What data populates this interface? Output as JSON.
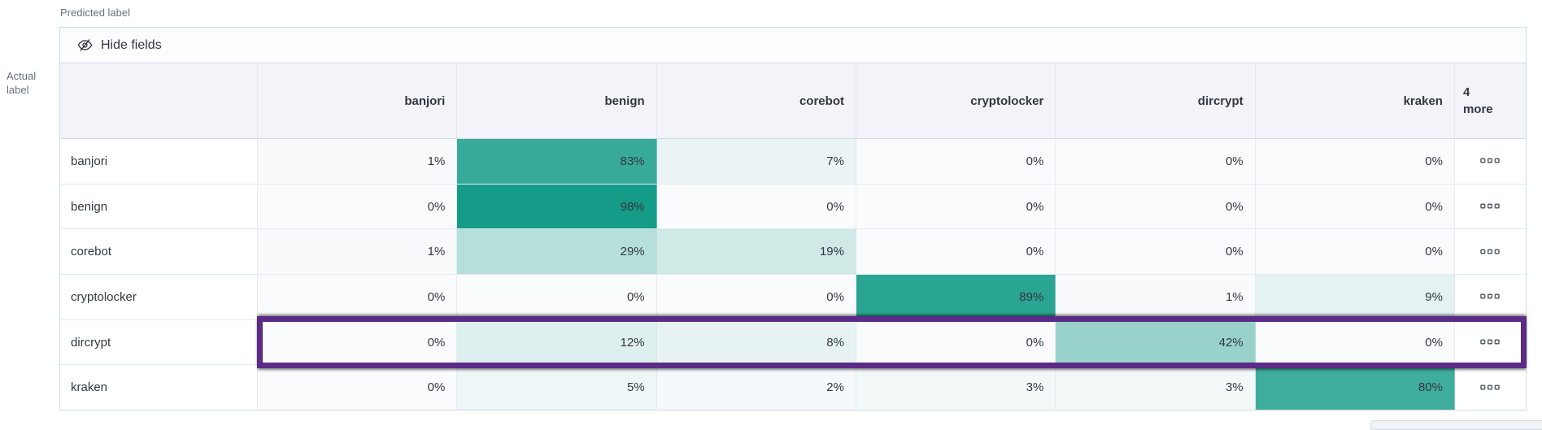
{
  "axis": {
    "predicted_label": "Predicted label",
    "actual_label_line1": "Actual",
    "actual_label_line2": "label"
  },
  "toolbar": {
    "hide_fields_label": "Hide fields",
    "icon": "eye-slash-icon"
  },
  "grid": {
    "more_column": {
      "count": "4",
      "label": "more"
    },
    "more_cell_icon": "boxes-horizontal-icon"
  },
  "colors": {
    "highlight": "#5B2B87",
    "cell_min": "#FAFBFD",
    "cell_max": "#109A86",
    "header_bg": "#F2F4FA",
    "text": "#343741",
    "muted_text": "#69707D"
  },
  "chart_data": {
    "type": "heatmap",
    "title": "Classification confusion matrix",
    "x_label": "Predicted label",
    "y_label": "Actual label",
    "categories": [
      "banjori",
      "benign",
      "corebot",
      "cryptolocker",
      "dircrypt",
      "kraken"
    ],
    "rows": [
      "banjori",
      "benign",
      "corebot",
      "cryptolocker",
      "dircrypt",
      "kraken"
    ],
    "values_percent": [
      [
        1,
        83,
        7,
        0,
        0,
        0
      ],
      [
        0,
        98,
        0,
        0,
        0,
        0
      ],
      [
        1,
        29,
        19,
        0,
        0,
        0
      ],
      [
        0,
        0,
        0,
        89,
        1,
        9
      ],
      [
        0,
        12,
        8,
        0,
        42,
        0
      ],
      [
        0,
        5,
        2,
        3,
        3,
        80
      ]
    ],
    "value_suffix": "%",
    "hidden_columns_count": 4,
    "color_scale": {
      "min_color": "#FAFBFD",
      "max_color": "#109A86",
      "domain": [
        0,
        100
      ]
    },
    "highlighted_row": "dircrypt",
    "legend": "none",
    "grid_lines": "on"
  }
}
